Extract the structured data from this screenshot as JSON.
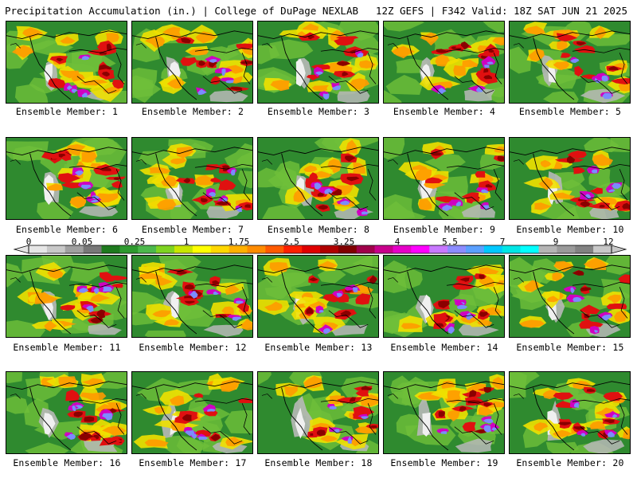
{
  "header": {
    "title": "Precipitation Accumulation (in.) | College of DuPage NEXLAB",
    "run_info": "12Z GEFS | F342 Valid: 18Z SAT JUN 21 2025"
  },
  "panels": [
    {
      "label": "Ensemble Member: 1"
    },
    {
      "label": "Ensemble Member: 2"
    },
    {
      "label": "Ensemble Member: 3"
    },
    {
      "label": "Ensemble Member: 4"
    },
    {
      "label": "Ensemble Member: 5"
    },
    {
      "label": "Ensemble Member: 6"
    },
    {
      "label": "Ensemble Member: 7"
    },
    {
      "label": "Ensemble Member: 8"
    },
    {
      "label": "Ensemble Member: 9"
    },
    {
      "label": "Ensemble Member: 10"
    },
    {
      "label": "Ensemble Member: 11"
    },
    {
      "label": "Ensemble Member: 12"
    },
    {
      "label": "Ensemble Member: 13"
    },
    {
      "label": "Ensemble Member: 14"
    },
    {
      "label": "Ensemble Member: 15"
    },
    {
      "label": "Ensemble Member: 16"
    },
    {
      "label": "Ensemble Member: 17"
    },
    {
      "label": "Ensemble Member: 18"
    },
    {
      "label": "Ensemble Member: 19"
    },
    {
      "label": "Ensemble Member: 20"
    }
  ],
  "colorbar": {
    "labels": [
      "0",
      "0.05",
      "0.25",
      "1",
      "1.75",
      "2.5",
      "3.25",
      "4",
      "5.5",
      "7",
      "9",
      "12"
    ],
    "colors": [
      "#e6e6e6",
      "#c8c8c8",
      "#a0a0a0",
      "#787878",
      "#1e7a1e",
      "#2f9a2f",
      "#4cb84c",
      "#7ed321",
      "#c8e600",
      "#ffff00",
      "#ffd700",
      "#ffb000",
      "#ff8c00",
      "#ff5a00",
      "#ff2000",
      "#e00000",
      "#b00000",
      "#800000",
      "#a0004a",
      "#c8008c",
      "#e600c8",
      "#ff00ff",
      "#c878ff",
      "#8c8cff",
      "#5aa0ff",
      "#00c8ff",
      "#00e6e6",
      "#00ffff",
      "#b4b4b4",
      "#9a9a9a",
      "#828282",
      "#c8c8c8"
    ]
  },
  "map_colors": {
    "base": "#2f8a2f",
    "light_green": "#6fbf3a",
    "yellow": "#f0e000",
    "orange": "#ff9a00",
    "red": "#e01010",
    "maroon": "#8a0000",
    "magenta": "#d000c0",
    "blue": "#7a8cff",
    "gray": "#b8b8b8",
    "white": "#f0f0f0",
    "border": "#000000"
  }
}
